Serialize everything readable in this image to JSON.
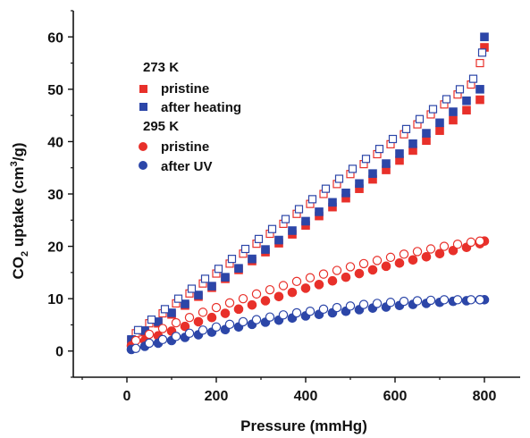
{
  "chart_data": {
    "type": "scatter",
    "xlabel": "Pressure (mmHg)",
    "ylabel_parts": [
      "CO",
      "2",
      " uptake (cm",
      "3",
      "/g)"
    ],
    "xlim": [
      -120,
      880
    ],
    "ylim": [
      -5,
      65
    ],
    "x_ticks": [
      0,
      200,
      400,
      600,
      800
    ],
    "y_ticks": [
      0,
      10,
      20,
      30,
      40,
      50,
      60
    ],
    "grid": false,
    "legend_position": "top-left",
    "legend_groups": [
      {
        "title": "273 K",
        "entries": [
          {
            "label": "pristine",
            "series": "s273_pristine_filled"
          },
          {
            "label": "after heating",
            "series": "s273_heat_filled"
          }
        ]
      },
      {
        "title": "295 K",
        "entries": [
          {
            "label": "pristine",
            "series": "s295_pristine_filled"
          },
          {
            "label": "after UV",
            "series": "s295_uv_filled"
          }
        ]
      }
    ],
    "series": [
      {
        "id": "s273_pristine_filled",
        "marker": "square",
        "fill": "filled",
        "color": "#e8302a",
        "points": [
          [
            10,
            2.0
          ],
          [
            40,
            3.6
          ],
          [
            70,
            5.3
          ],
          [
            100,
            7.0
          ],
          [
            130,
            8.7
          ],
          [
            160,
            10.4
          ],
          [
            190,
            12.1
          ],
          [
            220,
            13.8
          ],
          [
            250,
            15.5
          ],
          [
            280,
            17.2
          ],
          [
            310,
            18.9
          ],
          [
            340,
            20.6
          ],
          [
            370,
            22.3
          ],
          [
            400,
            24.0
          ],
          [
            430,
            25.8
          ],
          [
            460,
            27.5
          ],
          [
            490,
            29.2
          ],
          [
            520,
            31.0
          ],
          [
            550,
            32.8
          ],
          [
            580,
            34.6
          ],
          [
            610,
            36.4
          ],
          [
            640,
            38.3
          ],
          [
            670,
            40.2
          ],
          [
            700,
            42.1
          ],
          [
            730,
            44.1
          ],
          [
            760,
            46.0
          ],
          [
            790,
            48.0
          ],
          [
            800,
            58.0
          ]
        ]
      },
      {
        "id": "s273_pristine_open",
        "marker": "square",
        "fill": "open",
        "color": "#e8302a",
        "points": [
          [
            20,
            3.4
          ],
          [
            50,
            5.3
          ],
          [
            80,
            7.2
          ],
          [
            110,
            9.1
          ],
          [
            140,
            11.0
          ],
          [
            170,
            12.9
          ],
          [
            200,
            14.8
          ],
          [
            230,
            16.7
          ],
          [
            260,
            18.6
          ],
          [
            290,
            20.5
          ],
          [
            320,
            22.4
          ],
          [
            350,
            24.3
          ],
          [
            380,
            26.2
          ],
          [
            410,
            28.1
          ],
          [
            440,
            30.0
          ],
          [
            470,
            31.9
          ],
          [
            500,
            33.8
          ],
          [
            530,
            35.7
          ],
          [
            560,
            37.6
          ],
          [
            590,
            39.5
          ],
          [
            620,
            41.4
          ],
          [
            650,
            43.3
          ],
          [
            680,
            45.2
          ],
          [
            710,
            47.1
          ],
          [
            740,
            49.0
          ],
          [
            770,
            50.9
          ],
          [
            790,
            55.0
          ]
        ]
      },
      {
        "id": "s273_heat_filled",
        "marker": "square",
        "fill": "filled",
        "color": "#2c46a8",
        "points": [
          [
            10,
            2.2
          ],
          [
            40,
            3.9
          ],
          [
            70,
            5.6
          ],
          [
            100,
            7.3
          ],
          [
            130,
            9.0
          ],
          [
            160,
            10.7
          ],
          [
            190,
            12.4
          ],
          [
            220,
            14.1
          ],
          [
            250,
            15.8
          ],
          [
            280,
            17.6
          ],
          [
            310,
            19.4
          ],
          [
            340,
            21.2
          ],
          [
            370,
            23.0
          ],
          [
            400,
            24.8
          ],
          [
            430,
            26.6
          ],
          [
            460,
            28.4
          ],
          [
            490,
            30.2
          ],
          [
            520,
            32.0
          ],
          [
            550,
            33.9
          ],
          [
            580,
            35.8
          ],
          [
            610,
            37.7
          ],
          [
            640,
            39.6
          ],
          [
            670,
            41.6
          ],
          [
            700,
            43.6
          ],
          [
            730,
            45.7
          ],
          [
            760,
            47.8
          ],
          [
            790,
            50.0
          ],
          [
            800,
            60.0
          ]
        ]
      },
      {
        "id": "s273_heat_open",
        "marker": "square",
        "fill": "open",
        "color": "#2c46a8",
        "points": [
          [
            25,
            4.0
          ],
          [
            55,
            6.0
          ],
          [
            85,
            8.0
          ],
          [
            115,
            10.0
          ],
          [
            145,
            11.9
          ],
          [
            175,
            13.8
          ],
          [
            205,
            15.7
          ],
          [
            235,
            17.6
          ],
          [
            265,
            19.5
          ],
          [
            295,
            21.4
          ],
          [
            325,
            23.3
          ],
          [
            355,
            25.2
          ],
          [
            385,
            27.1
          ],
          [
            415,
            29.0
          ],
          [
            445,
            31.0
          ],
          [
            475,
            32.9
          ],
          [
            505,
            34.8
          ],
          [
            535,
            36.7
          ],
          [
            565,
            38.6
          ],
          [
            595,
            40.5
          ],
          [
            625,
            42.4
          ],
          [
            655,
            44.3
          ],
          [
            685,
            46.2
          ],
          [
            715,
            48.1
          ],
          [
            745,
            50.0
          ],
          [
            775,
            52.0
          ],
          [
            795,
            57.0
          ]
        ]
      },
      {
        "id": "s295_pristine_filled",
        "marker": "circle",
        "fill": "filled",
        "color": "#e8302a",
        "points": [
          [
            10,
            1.0
          ],
          [
            40,
            2.0
          ],
          [
            70,
            2.9
          ],
          [
            100,
            3.8
          ],
          [
            130,
            4.7
          ],
          [
            160,
            5.6
          ],
          [
            190,
            6.4
          ],
          [
            220,
            7.2
          ],
          [
            250,
            8.0
          ],
          [
            280,
            8.8
          ],
          [
            310,
            9.6
          ],
          [
            340,
            10.4
          ],
          [
            370,
            11.2
          ],
          [
            400,
            12.0
          ],
          [
            430,
            12.7
          ],
          [
            460,
            13.4
          ],
          [
            490,
            14.1
          ],
          [
            520,
            14.8
          ],
          [
            550,
            15.5
          ],
          [
            580,
            16.2
          ],
          [
            610,
            16.8
          ],
          [
            640,
            17.4
          ],
          [
            670,
            18.0
          ],
          [
            700,
            18.6
          ],
          [
            730,
            19.2
          ],
          [
            760,
            19.8
          ],
          [
            790,
            20.5
          ],
          [
            800,
            21.0
          ]
        ]
      },
      {
        "id": "s295_pristine_open",
        "marker": "circle",
        "fill": "open",
        "color": "#e8302a",
        "points": [
          [
            20,
            2.0
          ],
          [
            50,
            3.2
          ],
          [
            80,
            4.3
          ],
          [
            110,
            5.4
          ],
          [
            140,
            6.4
          ],
          [
            170,
            7.4
          ],
          [
            200,
            8.3
          ],
          [
            230,
            9.2
          ],
          [
            260,
            10.0
          ],
          [
            290,
            10.9
          ],
          [
            320,
            11.7
          ],
          [
            350,
            12.5
          ],
          [
            380,
            13.3
          ],
          [
            410,
            14.0
          ],
          [
            440,
            14.7
          ],
          [
            470,
            15.4
          ],
          [
            500,
            16.1
          ],
          [
            530,
            16.7
          ],
          [
            560,
            17.3
          ],
          [
            590,
            17.9
          ],
          [
            620,
            18.5
          ],
          [
            650,
            19.0
          ],
          [
            680,
            19.5
          ],
          [
            710,
            20.0
          ],
          [
            740,
            20.4
          ],
          [
            770,
            20.8
          ],
          [
            790,
            21.0
          ]
        ]
      },
      {
        "id": "s295_uv_filled",
        "marker": "circle",
        "fill": "filled",
        "color": "#2c46a8",
        "points": [
          [
            10,
            0.3
          ],
          [
            40,
            0.9
          ],
          [
            70,
            1.5
          ],
          [
            100,
            2.0
          ],
          [
            130,
            2.6
          ],
          [
            160,
            3.1
          ],
          [
            190,
            3.6
          ],
          [
            220,
            4.1
          ],
          [
            250,
            4.6
          ],
          [
            280,
            5.1
          ],
          [
            310,
            5.5
          ],
          [
            340,
            5.9
          ],
          [
            370,
            6.3
          ],
          [
            400,
            6.7
          ],
          [
            430,
            7.0
          ],
          [
            460,
            7.3
          ],
          [
            490,
            7.6
          ],
          [
            520,
            7.9
          ],
          [
            550,
            8.2
          ],
          [
            580,
            8.4
          ],
          [
            610,
            8.7
          ],
          [
            640,
            8.9
          ],
          [
            670,
            9.1
          ],
          [
            700,
            9.3
          ],
          [
            730,
            9.5
          ],
          [
            760,
            9.6
          ],
          [
            790,
            9.8
          ],
          [
            800,
            9.8
          ]
        ]
      },
      {
        "id": "s295_uv_open",
        "marker": "circle",
        "fill": "open",
        "color": "#2c46a8",
        "points": [
          [
            20,
            0.5
          ],
          [
            50,
            1.5
          ],
          [
            80,
            2.2
          ],
          [
            110,
            2.8
          ],
          [
            140,
            3.4
          ],
          [
            170,
            4.0
          ],
          [
            200,
            4.6
          ],
          [
            230,
            5.1
          ],
          [
            260,
            5.6
          ],
          [
            290,
            6.0
          ],
          [
            320,
            6.5
          ],
          [
            350,
            6.9
          ],
          [
            380,
            7.3
          ],
          [
            410,
            7.6
          ],
          [
            440,
            8.0
          ],
          [
            470,
            8.3
          ],
          [
            500,
            8.6
          ],
          [
            530,
            8.9
          ],
          [
            560,
            9.1
          ],
          [
            590,
            9.3
          ],
          [
            620,
            9.5
          ],
          [
            650,
            9.6
          ],
          [
            680,
            9.7
          ],
          [
            710,
            9.8
          ],
          [
            740,
            9.8
          ],
          [
            770,
            9.8
          ],
          [
            790,
            9.8
          ]
        ]
      }
    ]
  }
}
